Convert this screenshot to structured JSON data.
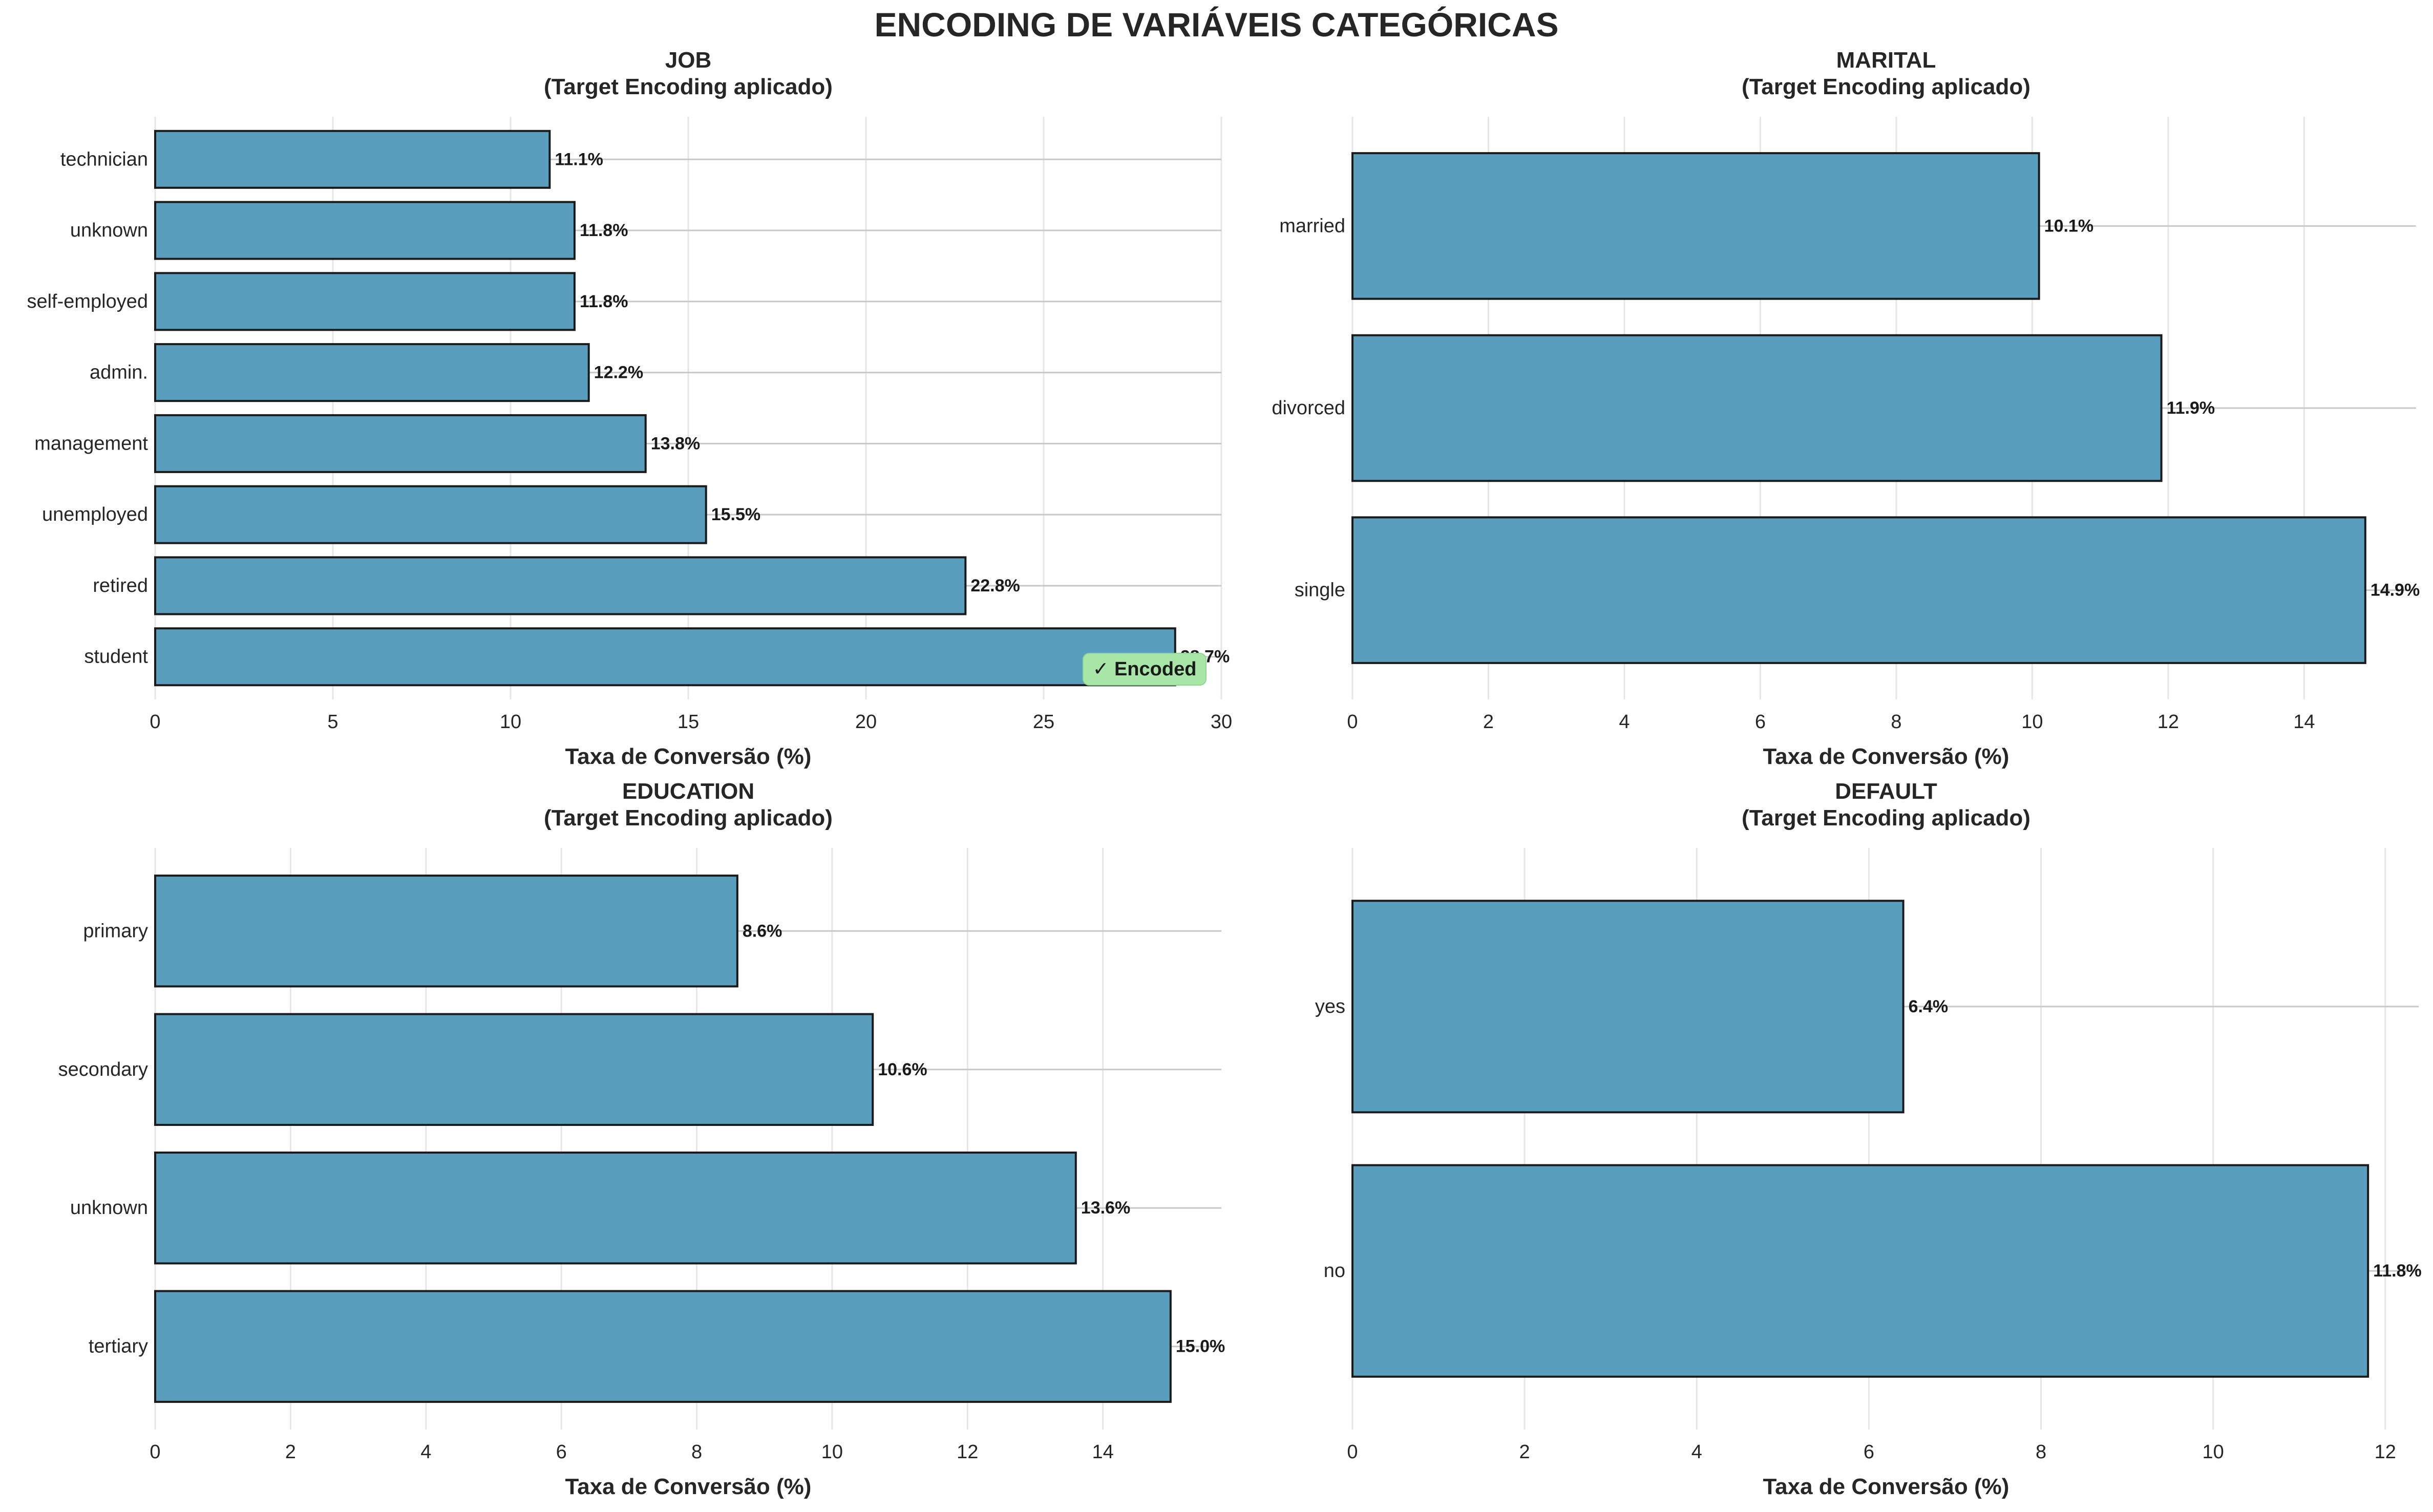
{
  "figure": {
    "title": "ENCODING DE VARIÁVEIS CATEGÓRICAS"
  },
  "colors": {
    "bar": "#5a9ebd",
    "bar_edge": "#1a1a1a",
    "grid": "#e6e6e6",
    "ref_line": "#c8c8c8",
    "badge_bg": "#a8e6a8",
    "text": "#262626"
  },
  "chart_data": [
    {
      "type": "bar",
      "orientation": "horizontal",
      "title": "JOB\n(Target Encoding aplicado)",
      "xlabel": "Taxa de Conversão (%)",
      "categories": [
        "technician",
        "unknown",
        "self-employed",
        "admin.",
        "management",
        "unemployed",
        "retired",
        "student"
      ],
      "values": [
        11.1,
        11.8,
        11.8,
        12.2,
        13.8,
        15.5,
        22.8,
        28.7
      ],
      "value_labels": [
        "11.1%",
        "11.8%",
        "11.8%",
        "12.2%",
        "13.8%",
        "15.5%",
        "22.8%",
        "28.7%"
      ],
      "xlim": [
        0,
        30
      ],
      "xticks": [
        0,
        5,
        10,
        15,
        20,
        25,
        30
      ],
      "grid": true,
      "badge": "✓ Encoded"
    },
    {
      "type": "bar",
      "orientation": "horizontal",
      "title": "MARITAL\n(Target Encoding aplicado)",
      "xlabel": "Taxa de Conversão (%)",
      "categories": [
        "married",
        "divorced",
        "single"
      ],
      "values": [
        10.1,
        11.9,
        14.9
      ],
      "value_labels": [
        "10.1%",
        "11.9%",
        "14.9%"
      ],
      "xlim": [
        0,
        15.7
      ],
      "xticks": [
        0,
        2,
        4,
        6,
        8,
        10,
        12,
        14
      ],
      "grid": true
    },
    {
      "type": "bar",
      "orientation": "horizontal",
      "title": "EDUCATION\n(Target Encoding aplicado)",
      "xlabel": "Taxa de Conversão (%)",
      "categories": [
        "primary",
        "secondary",
        "unknown",
        "tertiary"
      ],
      "values": [
        8.6,
        10.6,
        13.6,
        15.0
      ],
      "value_labels": [
        "8.6%",
        "10.6%",
        "13.6%",
        "15.0%"
      ],
      "xlim": [
        0,
        15.75
      ],
      "xticks": [
        0,
        2,
        4,
        6,
        8,
        10,
        12,
        14
      ],
      "grid": true
    },
    {
      "type": "bar",
      "orientation": "horizontal",
      "title": "DEFAULT\n(Target Encoding aplicado)",
      "xlabel": "Taxa de Conversão (%)",
      "categories": [
        "yes",
        "no"
      ],
      "values": [
        6.4,
        11.8
      ],
      "value_labels": [
        "6.4%",
        "11.8%"
      ],
      "xlim": [
        0,
        12.4
      ],
      "xticks": [
        0,
        2,
        4,
        6,
        8,
        10,
        12
      ],
      "grid": true
    }
  ]
}
